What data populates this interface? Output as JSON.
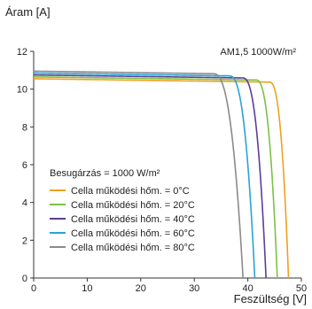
{
  "chart_data": {
    "type": "line",
    "ylabel": "Áram [A]",
    "xlabel": "Feszültség  [V]",
    "annotation": "AM1,5 1000W/m²",
    "xlim": [
      0,
      50
    ],
    "ylim": [
      0,
      12
    ],
    "xticks": [
      0,
      10,
      20,
      30,
      40,
      50
    ],
    "yticks": [
      0,
      2,
      4,
      6,
      8,
      10,
      12
    ],
    "grid": false,
    "legend_title": "Besugárzás = 1000 W/m²",
    "legend_position": "bottom-left",
    "series": [
      {
        "name": "Cella működési hőm. = 0°C",
        "color": "#f0a020",
        "isc": 10.55,
        "voc": 47.6,
        "vk": 44.0
      },
      {
        "name": "Cella működési hőm. = 20°C",
        "color": "#7cc242",
        "isc": 10.65,
        "voc": 45.5,
        "vk": 41.5
      },
      {
        "name": "Cella működési hőm. = 40°C",
        "color": "#5a3e9a",
        "isc": 10.75,
        "voc": 43.4,
        "vk": 39.0
      },
      {
        "name": "Cella működési hőm. = 60°C",
        "color": "#28a4d6",
        "isc": 10.85,
        "voc": 41.3,
        "vk": 36.5
      },
      {
        "name": "Cella működési hőm. = 80°C",
        "color": "#8a8a8a",
        "isc": 10.95,
        "voc": 39.1,
        "vk": 33.5
      }
    ]
  }
}
